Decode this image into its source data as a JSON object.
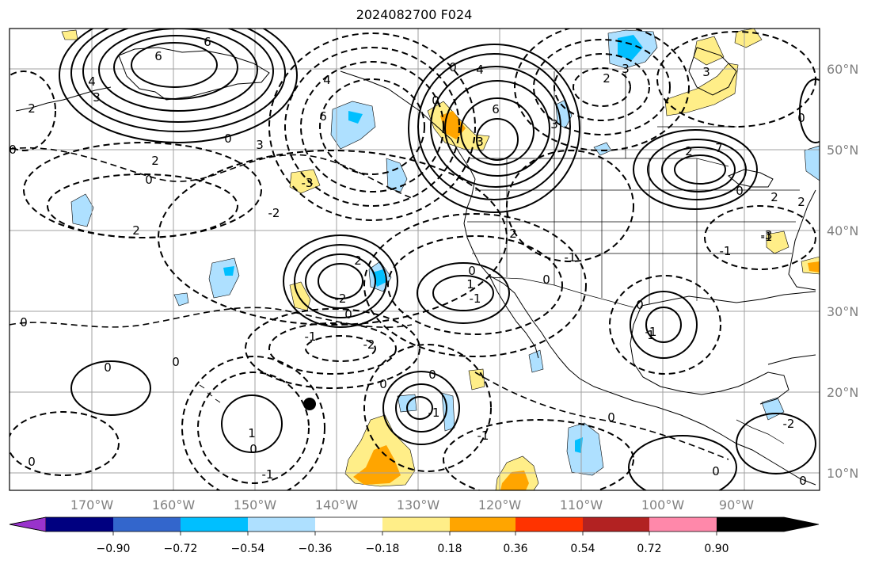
{
  "title": "2024082700 F024",
  "lon_labels": [
    "170°W",
    "160°W",
    "150°W",
    "140°W",
    "130°W",
    "120°W",
    "110°W",
    "100°W",
    "90°W"
  ],
  "lat_labels": [
    "60°N",
    "50°N",
    "40°N",
    "30°N",
    "20°N",
    "10°N"
  ],
  "colorbar": {
    "colors": [
      "#9933cc",
      "#000080",
      "#3366cc",
      "#00bfff",
      "#aee0ff",
      "#ffffff",
      "#ffee88",
      "#ffa500",
      "#ff3300",
      "#b22222",
      "#ff88aa"
    ],
    "ticks": [
      "−0.90",
      "−0.72",
      "−0.54",
      "−0.36",
      "−0.18",
      "0.18",
      "0.36",
      "0.54",
      "0.72",
      "0.90"
    ]
  },
  "contour_labels": [
    "6",
    "6",
    "4",
    "4",
    "3",
    "0",
    "0",
    "2",
    "2",
    "3",
    "0",
    "0",
    "6",
    "3",
    "6",
    "4",
    "3",
    "2",
    "3",
    "2",
    "7",
    "3",
    "0",
    "0",
    "2",
    "2",
    "0",
    "-3",
    "-2",
    "-2",
    "2",
    "2",
    "0",
    "2",
    "-1",
    "1",
    "0",
    "-1",
    "1",
    "0",
    "-1",
    "-2",
    "0",
    "0",
    "0",
    "1",
    "-1",
    "-1",
    "-1",
    "-1",
    "0",
    "0",
    "0",
    "0",
    "0",
    "-1",
    "0",
    "-1",
    "0",
    "-3",
    "-2",
    "0"
  ]
}
